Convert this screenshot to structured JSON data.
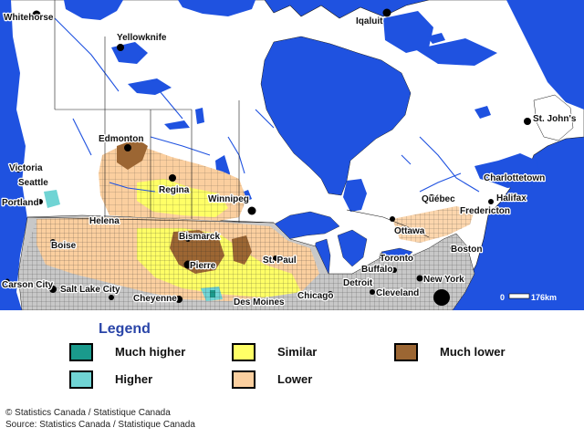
{
  "map": {
    "cities": [
      {
        "name": "Whitehorse"
      },
      {
        "name": "Yellowknife"
      },
      {
        "name": "Iqaluit"
      },
      {
        "name": "St. John's"
      },
      {
        "name": "Edmonton"
      },
      {
        "name": "Victoria"
      },
      {
        "name": "Seattle"
      },
      {
        "name": "Portland"
      },
      {
        "name": "Regina"
      },
      {
        "name": "Winnipeg"
      },
      {
        "name": "Charlottetown"
      },
      {
        "name": "Halifax"
      },
      {
        "name": "Québec"
      },
      {
        "name": "Fredericton"
      },
      {
        "name": "Helena"
      },
      {
        "name": "Bismarck"
      },
      {
        "name": "Ottawa"
      },
      {
        "name": "Boise"
      },
      {
        "name": "Toronto"
      },
      {
        "name": "Boston"
      },
      {
        "name": "Pierre"
      },
      {
        "name": "St. Paul"
      },
      {
        "name": "Buffalo"
      },
      {
        "name": "New York"
      },
      {
        "name": "Carson City"
      },
      {
        "name": "Salt Lake City"
      },
      {
        "name": "Detroit"
      },
      {
        "name": "Cleveland"
      },
      {
        "name": "Cheyenne"
      },
      {
        "name": "Des Moines"
      },
      {
        "name": "Chicago"
      }
    ],
    "scale_bar": {
      "start": "0",
      "end": "176km"
    },
    "colors": {
      "water": "#1f52e0",
      "land": "#ffffff",
      "us_land": "#c8c8c8",
      "much_higher": "#1a9a8c",
      "higher": "#70d4d4",
      "similar": "#ffff66",
      "lower": "#fbcf9f",
      "much_lower": "#9c6633"
    }
  },
  "legend": {
    "title": "Legend",
    "items": [
      {
        "label": "Much higher",
        "color": "#1a9a8c"
      },
      {
        "label": "Higher",
        "color": "#70d4d4"
      },
      {
        "label": "Similar",
        "color": "#ffff66"
      },
      {
        "label": "Lower",
        "color": "#fbcf9f"
      },
      {
        "label": "Much lower",
        "color": "#9c6633"
      }
    ]
  },
  "credits": {
    "copyright": "© Statistics Canada / Statistique Canada",
    "source": "Source: Statistics Canada / Statistique Canada"
  }
}
